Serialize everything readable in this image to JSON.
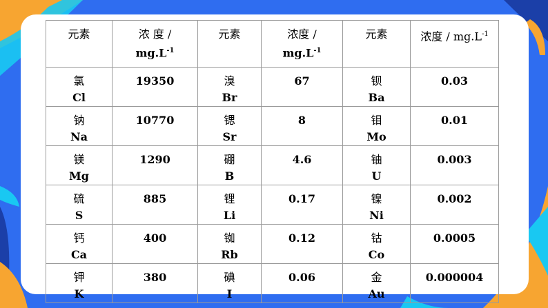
{
  "colors": {
    "background_blue": "#2f6df0",
    "accent_orange": "#f7a531",
    "accent_cyan": "#19c8f2",
    "accent_dark": "#1b3fa8",
    "card": "#ffffff"
  },
  "table": {
    "headers": [
      {
        "label": "元素",
        "unit": ""
      },
      {
        "label": "浓 度 /",
        "unit": "mg.L",
        "sup": "-1"
      },
      {
        "label": "元素",
        "unit": ""
      },
      {
        "label": "浓度 /",
        "unit": "mg.L",
        "sup": "-1"
      },
      {
        "label": "元素",
        "unit": ""
      },
      {
        "label": "浓度 / mg.L",
        "unit": "",
        "sup": "-1"
      }
    ],
    "rows": [
      [
        {
          "cn": "氯",
          "sym": "Cl"
        },
        {
          "v": "19350"
        },
        {
          "cn": "溴",
          "sym": "Br"
        },
        {
          "v": "67"
        },
        {
          "cn": "钡",
          "sym": "Ba"
        },
        {
          "v": "0.03"
        }
      ],
      [
        {
          "cn": "钠",
          "sym": "Na"
        },
        {
          "v": "10770"
        },
        {
          "cn": "锶",
          "sym": "Sr"
        },
        {
          "v": "8"
        },
        {
          "cn": "钼",
          "sym": "Mo"
        },
        {
          "v": "0.01"
        }
      ],
      [
        {
          "cn": "镁",
          "sym": "Mg"
        },
        {
          "v": "1290"
        },
        {
          "cn": "硼",
          "sym": "B"
        },
        {
          "v": "4.6"
        },
        {
          "cn": "铀",
          "sym": "U"
        },
        {
          "v": "0.003"
        }
      ],
      [
        {
          "cn": "硫",
          "sym": "S"
        },
        {
          "v": "885"
        },
        {
          "cn": "锂",
          "sym": "Li"
        },
        {
          "v": "0.17"
        },
        {
          "cn": "镍",
          "sym": "Ni"
        },
        {
          "v": "0.002"
        }
      ],
      [
        {
          "cn": "钙",
          "sym": "Ca"
        },
        {
          "v": "400"
        },
        {
          "cn": "铷",
          "sym": "Rb"
        },
        {
          "v": "0.12"
        },
        {
          "cn": "钴",
          "sym": "Co"
        },
        {
          "v": "0.0005"
        }
      ],
      [
        {
          "cn": "钾",
          "sym": "K"
        },
        {
          "v": "380"
        },
        {
          "cn": "碘",
          "sym": "I"
        },
        {
          "v": "0.06"
        },
        {
          "cn": "金",
          "sym": "Au"
        },
        {
          "v": "0.000004"
        }
      ]
    ]
  }
}
